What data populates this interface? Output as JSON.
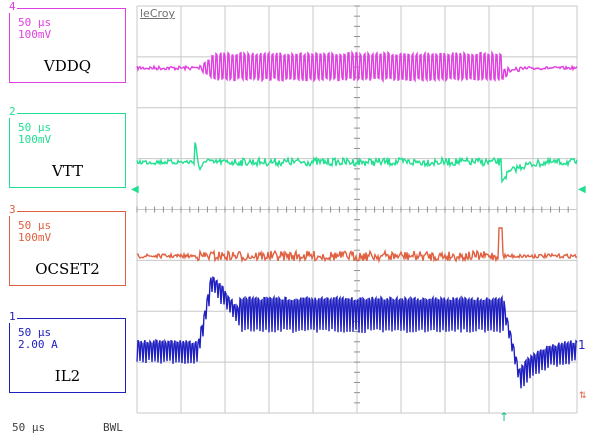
{
  "brand": "leCroy",
  "channels": [
    {
      "id": "ch4",
      "number": "4",
      "timebase": "50 µs",
      "volts_div": "100mV",
      "name": "VDDQ",
      "color": "#e040e0"
    },
    {
      "id": "ch2",
      "number": "2",
      "timebase": "50 µs",
      "volts_div": "100mV",
      "name": "VTT",
      "color": "#20e090"
    },
    {
      "id": "ch3",
      "number": "3",
      "timebase": "50 µs",
      "volts_div": "100mV",
      "name": "OCSET2",
      "color": "#e06040"
    },
    {
      "id": "ch1",
      "number": "1",
      "timebase": "50 µs",
      "volts_div": "2.00 A",
      "name": "IL2",
      "color": "#2020c0"
    }
  ],
  "status": {
    "timebase": "50 µs",
    "bwl": "BWL"
  },
  "markers": {
    "right_ch1": "1",
    "trigger_flag": "↑"
  },
  "colors": {
    "grid": "#c8c8c8",
    "grid_dot": "#909090"
  }
}
